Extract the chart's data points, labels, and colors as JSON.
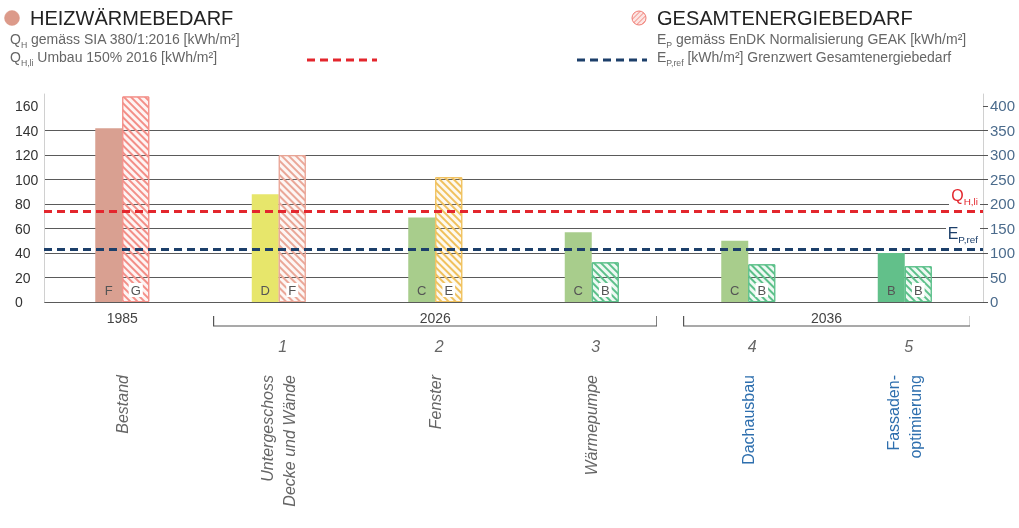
{
  "chart_data": {
    "type": "bar",
    "categories": [
      "Bestand",
      "Untergeschoss\nDecke und Wände",
      "Fenster",
      "Wärmepumpe",
      "Dachausbau",
      "Fassaden-\noptimierung"
    ],
    "series": [
      {
        "name": "HEIZWÄRMEBEDARF",
        "color": "#dc9a8a",
        "colors": [
          "#d9a091",
          "#e7e66b",
          "#a8cd8c",
          "#a8cd8c",
          "#a8cd8c",
          "#62c08a"
        ],
        "values": [
          142,
          88,
          69,
          57,
          50,
          40
        ],
        "value_labels": [
          "F",
          "D",
          "C",
          "C",
          "C",
          "B"
        ]
      },
      {
        "name": "GESAMTENERGIEBEDARF",
        "axis": "y2",
        "color": "#f07c74",
        "colors": [
          "#f38f88",
          "#eaa798",
          "#f0c15e",
          "#5cc08a",
          "#5cc08a",
          "#5cc08a"
        ],
        "values": [
          420,
          300,
          255,
          81,
          77,
          73
        ],
        "value_labels": [
          "G",
          "F",
          "E",
          "B",
          "B",
          "B"
        ]
      }
    ],
    "ylabel": "Q$_{H}$ gemäss SIA 380/1:2016 [kWh/m²]",
    "y2label": "E$_{P}$ gemäss EnDK Normalisierung GEAK [kWh/m²]",
    "ylim": [
      0,
      170
    ],
    "yticks": [
      0,
      20,
      40,
      60,
      80,
      100,
      120,
      140,
      160
    ],
    "y2lim": [
      0,
      425
    ],
    "y2ticks": [
      0,
      50,
      100,
      150,
      200,
      250,
      300,
      350,
      400
    ],
    "ref_lines": [
      {
        "axis": "y",
        "value": 74,
        "label": "Q$_{H,li}$",
        "color": "#e3262d",
        "line_style": "dashed"
      },
      {
        "axis": "y2",
        "value": 108,
        "label": "E$_{P,ref}$",
        "color": "#1c3f6a",
        "line_style": "dashed"
      }
    ],
    "annotations": [
      "Q$_{H,li}$ Umbau 150% 2016 [kWh/m²]",
      "E$_{P,ref}$ [kWh/m²] Grenzwert Gesamtenergiebedarf",
      "1985",
      "2026",
      "2036",
      "1",
      "2",
      "3",
      "4",
      "5"
    ],
    "grid": "y",
    "legend": "top"
  }
}
